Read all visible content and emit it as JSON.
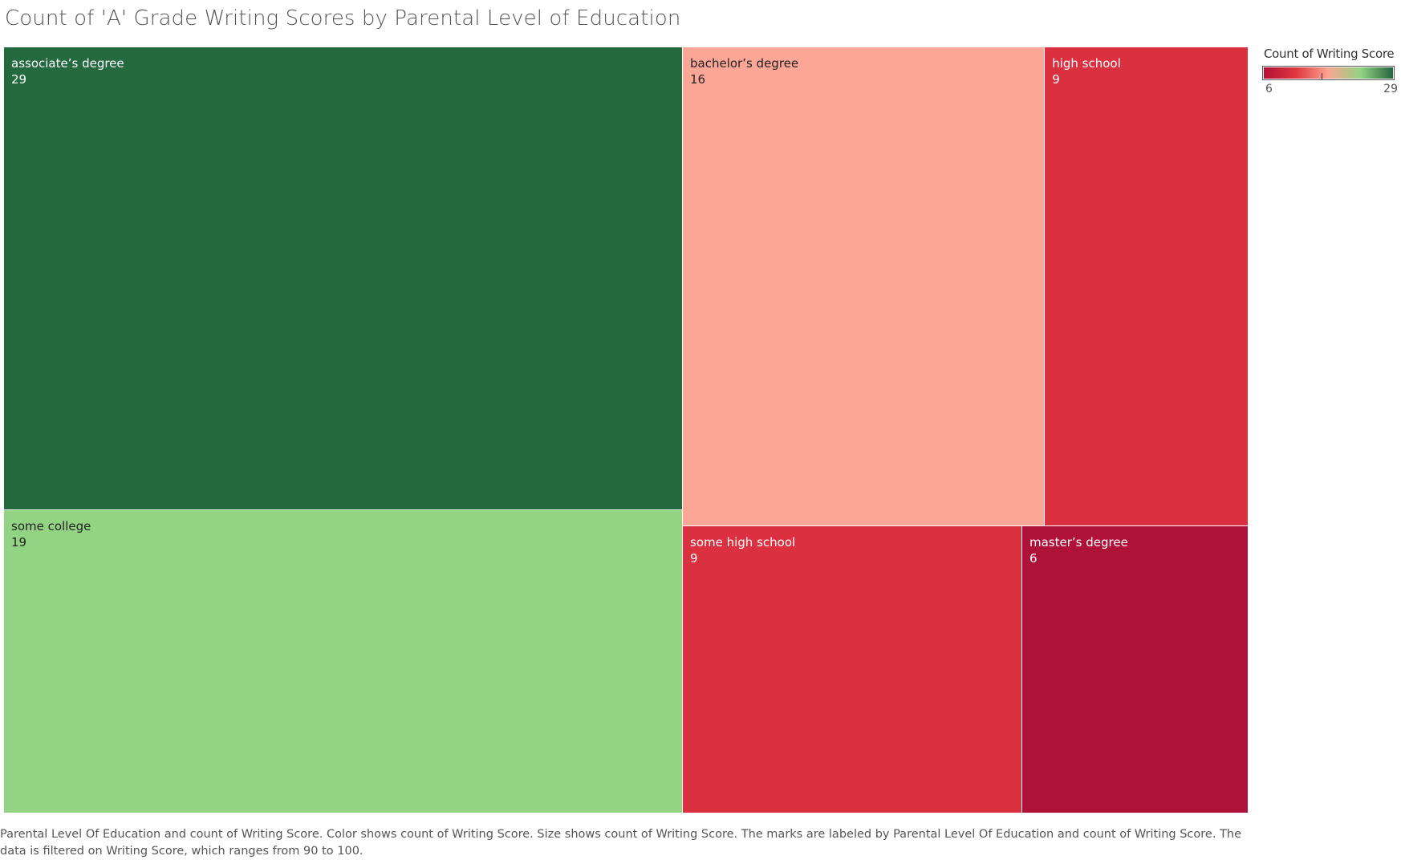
{
  "title": "Count of 'A' Grade Writing Scores by Parental Level of Education",
  "legend": {
    "title": "Count of Writing Score",
    "min_label": "6",
    "max_label": "29",
    "colors": [
      "#b31036",
      "#e0373f",
      "#fca493",
      "#91d382",
      "#26643e"
    ]
  },
  "caption": "Parental Level Of Education and count of Writing Score.  Color shows count of Writing Score.  Size shows count of Writing Score.  The marks are labeled by Parental Level Of Education and count of Writing Score. The data is filtered on Writing Score, which ranges from 90 to 100.",
  "chart_data": {
    "type": "treemap",
    "title": "Count of 'A' Grade Writing Scores by Parental Level of Education",
    "measure": "Count of Writing Score",
    "color_range": [
      6,
      29
    ],
    "categories": [
      "associate's degree",
      "some college",
      "bachelor's degree",
      "high school",
      "some high school",
      "master's degree"
    ],
    "values": [
      29,
      19,
      16,
      9,
      9,
      6
    ],
    "colors": [
      "#256a3e",
      "#93d384",
      "#fca697",
      "#da303f",
      "#da303f",
      "#ae1238"
    ]
  }
}
